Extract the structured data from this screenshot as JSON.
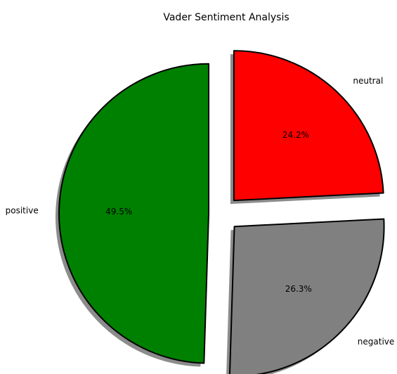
{
  "chart_data": {
    "type": "pie",
    "title": "Vader Sentiment Analysis",
    "categories": [
      "neutral",
      "negative",
      "positive"
    ],
    "values": [
      24.2,
      26.3,
      49.5
    ],
    "value_labels": [
      "24.2%",
      "26.3%",
      "49.5%"
    ],
    "colors": [
      "#ff0000",
      "#808080",
      "#008000"
    ],
    "start_angle": 90,
    "clockwise": true,
    "shadow": true
  }
}
